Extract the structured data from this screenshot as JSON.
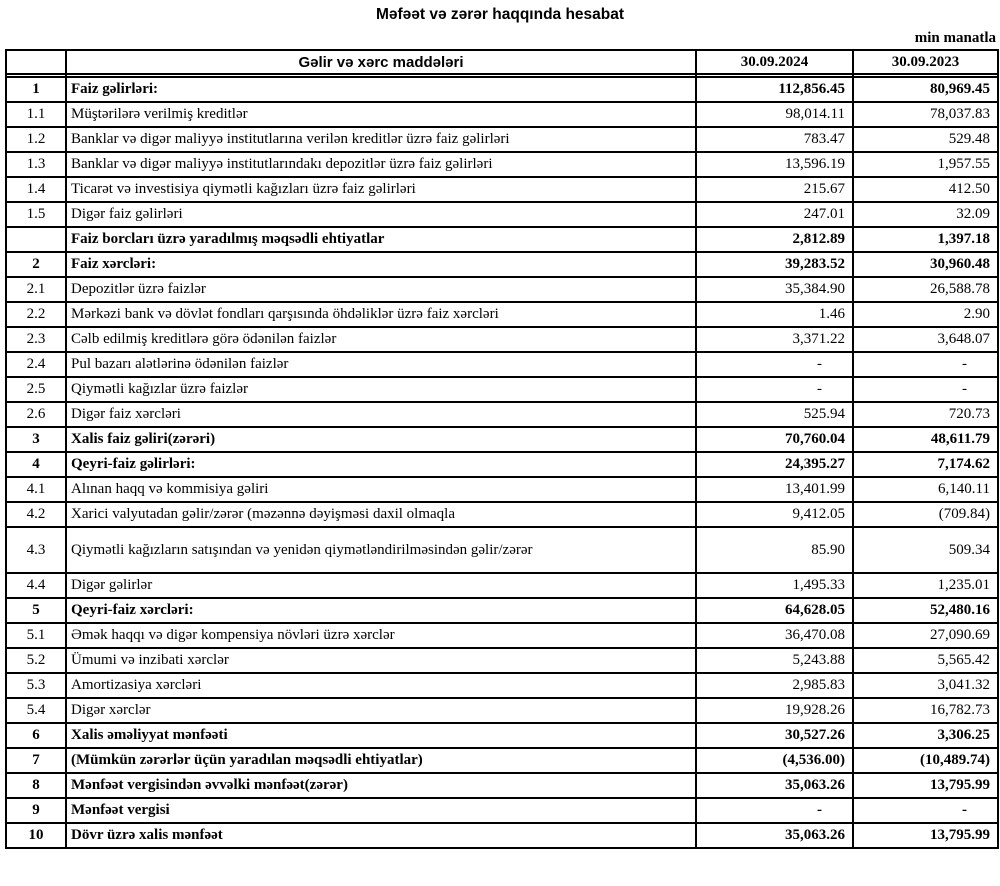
{
  "page": {
    "title": "Məfəət və zərər haqqında hesabat",
    "unit_note": "min manatla"
  },
  "table": {
    "header": {
      "items_label": "Gəlir və xərc maddələri",
      "period_1": "30.09.2024",
      "period_2": "30.09.2023"
    },
    "rows": [
      {
        "no": "1",
        "label": "Faiz gəlirləri:",
        "p1": "112,856.45",
        "p2": "80,969.45",
        "bold": true
      },
      {
        "no": "1.1",
        "label": "Müştərilərə verilmiş kreditlər",
        "p1": "98,014.11",
        "p2": "78,037.83"
      },
      {
        "no": "1.2",
        "label": "Banklar və digər maliyyə institutlarına verilən kreditlər üzrə faiz gəlirləri",
        "p1": "783.47",
        "p2": "529.48"
      },
      {
        "no": "1.3",
        "label": "Banklar və digər maliyyə institutlarındakı depozitlər üzrə faiz gəlirləri",
        "p1": "13,596.19",
        "p2": "1,957.55"
      },
      {
        "no": "1.4",
        "label": "Ticarət və investisiya qiymətli kağızları üzrə faiz gəlirləri",
        "p1": "215.67",
        "p2": "412.50"
      },
      {
        "no": "1.5",
        "label": "Digər faiz gəlirləri",
        "p1": "247.01",
        "p2": "32.09"
      },
      {
        "no": "",
        "label": "Faiz borcları üzrə yaradılmış məqsədli ehtiyatlar",
        "p1": "2,812.89",
        "p2": "1,397.18",
        "bold": true
      },
      {
        "no": "2",
        "label": "Faiz xərcləri:",
        "p1": "39,283.52",
        "p2": "30,960.48",
        "bold": true
      },
      {
        "no": "2.1",
        "label": "Depozitlər üzrə faizlər",
        "p1": "35,384.90",
        "p2": "26,588.78"
      },
      {
        "no": "2.2",
        "label": "Mərkəzi bank və dövlət fondları qarşısında öhdəliklər üzrə faiz xərcləri",
        "p1": "1.46",
        "p2": "2.90"
      },
      {
        "no": "2.3",
        "label": "Cəlb edilmiş kreditlərə görə ödənilən faizlər",
        "p1": "3,371.22",
        "p2": "3,648.07"
      },
      {
        "no": "2.4",
        "label": "Pul bazarı alətlərinə ödənilən faizlər",
        "p1": "-",
        "p2": "-"
      },
      {
        "no": "2.5",
        "label": "Qiymətli kağızlar üzrə faizlər",
        "p1": "-",
        "p2": "-"
      },
      {
        "no": "2.6",
        "label": "Digər faiz xərcləri",
        "p1": "525.94",
        "p2": "720.73"
      },
      {
        "no": "3",
        "label": "Xalis faiz gəliri(zərəri)",
        "p1": "70,760.04",
        "p2": "48,611.79",
        "bold": true
      },
      {
        "no": "4",
        "label": "Qeyri-faiz gəlirləri:",
        "p1": "24,395.27",
        "p2": "7,174.62",
        "bold": true
      },
      {
        "no": "4.1",
        "label": "Alınan haqq və kommisiya gəliri",
        "p1": "13,401.99",
        "p2": "6,140.11"
      },
      {
        "no": "4.2",
        "label": "Xarici valyutadan gəlir/zərər (məzənnə dəyişməsi daxil olmaqla",
        "p1": "9,412.05",
        "p2": "(709.84)"
      },
      {
        "no": "4.3",
        "label": "Qiymətli kağızların satışından və yenidən qiymətləndirilməsindən gəlir/zərər",
        "p1": "85.90",
        "p2": "509.34",
        "tall": true
      },
      {
        "no": "4.4",
        "label": "Digər gəlirlər",
        "p1": "1,495.33",
        "p2": "1,235.01"
      },
      {
        "no": "5",
        "label": "Qeyri-faiz xərcləri:",
        "p1": "64,628.05",
        "p2": "52,480.16",
        "bold": true
      },
      {
        "no": "5.1",
        "label": "Əmək haqqı və digər kompensiya növləri üzrə xərclər",
        "p1": "36,470.08",
        "p2": "27,090.69"
      },
      {
        "no": "5.2",
        "label": "Ümumi və inzibati xərclər",
        "p1": "5,243.88",
        "p2": "5,565.42"
      },
      {
        "no": "5.3",
        "label": "Amortizasiya xərcləri",
        "p1": "2,985.83",
        "p2": "3,041.32"
      },
      {
        "no": "5.4",
        "label": "Digər xərclər",
        "p1": "19,928.26",
        "p2": "16,782.73"
      },
      {
        "no": "6",
        "label": "Xalis əməliyyat mənfəəti",
        "p1": "30,527.26",
        "p2": "3,306.25",
        "bold": true
      },
      {
        "no": "7",
        "label": "(Mümkün zərərlər üçün yaradılan məqsədli ehtiyatlar)",
        "p1": "(4,536.00)",
        "p2": "(10,489.74)",
        "bold": true
      },
      {
        "no": "8",
        "label": "Mənfəət vergisindən əvvəlki mənfəət(zərər)",
        "p1": "35,063.26",
        "p2": "13,795.99",
        "bold": true
      },
      {
        "no": "9",
        "label": "Mənfəət vergisi",
        "p1": "-",
        "p2": "-",
        "bold": true
      },
      {
        "no": "10",
        "label": "Dövr üzrə xalis mənfəət",
        "p1": "35,063.26",
        "p2": "13,795.99",
        "bold": true
      }
    ]
  }
}
